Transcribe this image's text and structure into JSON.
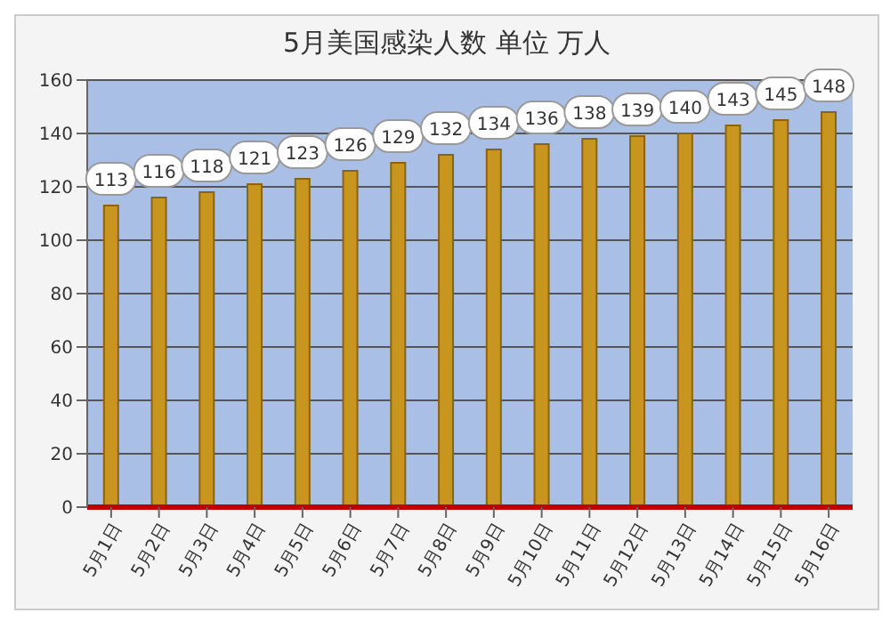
{
  "chart_data": {
    "type": "bar",
    "title": "5月美国感染人数 单位 万人",
    "categories": [
      "5月1日",
      "5月2日",
      "5月3日",
      "5月4日",
      "5月5日",
      "5月6日",
      "5月7日",
      "5月8日",
      "5月9日",
      "5月10日",
      "5月11日",
      "5月12日",
      "5月13日",
      "5月14日",
      "5月15日",
      "5月16日"
    ],
    "values": [
      113,
      116,
      118,
      121,
      123,
      126,
      129,
      132,
      134,
      136,
      138,
      139,
      140,
      143,
      145,
      148
    ],
    "color": "#c8961e",
    "ylim": [
      0,
      160
    ],
    "yticks": [
      0,
      20,
      40,
      60,
      80,
      100,
      120,
      140,
      160
    ],
    "grid": "y",
    "data_labels": true
  }
}
